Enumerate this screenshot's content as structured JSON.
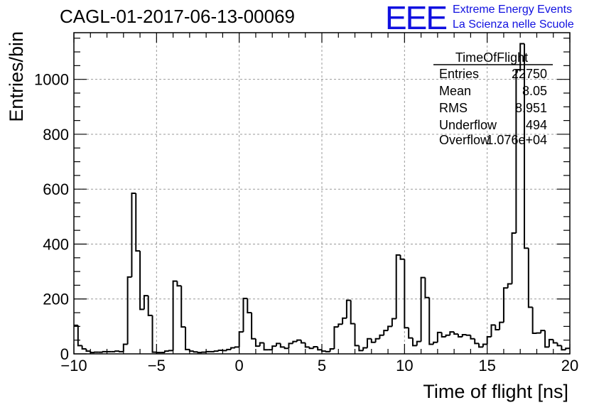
{
  "title": "CAGL-01-2017-06-13-00069",
  "logo": {
    "mark": "EEE",
    "line1": "Extreme Energy Events",
    "line2": "La Scienza nelle Scuole"
  },
  "stats_box": {
    "name": "TimeOfFlight",
    "rows": [
      {
        "label": "Entries",
        "value": "22750"
      },
      {
        "label": "Mean",
        "value": "8.05"
      },
      {
        "label": "RMS",
        "value": "8.951"
      },
      {
        "label": "Underflow",
        "value": "494"
      },
      {
        "label": "Overflow",
        "value": "1.076e+04"
      }
    ]
  },
  "chart_data": {
    "type": "histogram",
    "xlabel": "Time of flight [ns]",
    "ylabel": "Entries/bin",
    "xlim": [
      -10,
      20
    ],
    "ylim": [
      0,
      1170
    ],
    "xticks": [
      -10,
      -5,
      0,
      5,
      10,
      15,
      20
    ],
    "xtick_labels": [
      "−10",
      "−5",
      "0",
      "5",
      "10",
      "15",
      "20"
    ],
    "yticks": [
      0,
      200,
      400,
      600,
      800,
      1000
    ],
    "grid": true,
    "line_color": "#000000",
    "bin_width": 0.25,
    "x_start": -10,
    "values": [
      104,
      30,
      18,
      10,
      5,
      6,
      6,
      8,
      8,
      8,
      10,
      8,
      35,
      280,
      585,
      375,
      162,
      212,
      140,
      6,
      5,
      5,
      10,
      12,
      265,
      248,
      98,
      16,
      10,
      7,
      5,
      6,
      8,
      8,
      10,
      13,
      12,
      16,
      22,
      25,
      80,
      202,
      150,
      55,
      28,
      40,
      15,
      15,
      28,
      38,
      25,
      20,
      38,
      45,
      50,
      40,
      25,
      20,
      26,
      15,
      10,
      8,
      18,
      98,
      108,
      130,
      195,
      110,
      30,
      12,
      22,
      55,
      42,
      55,
      68,
      85,
      100,
      128,
      360,
      345,
      95,
      58,
      30,
      45,
      278,
      205,
      35,
      42,
      78,
      62,
      68,
      80,
      72,
      62,
      70,
      68,
      55,
      38,
      25,
      35,
      62,
      105,
      88,
      115,
      240,
      255,
      440,
      1035,
      1130,
      385,
      170,
      75,
      76,
      85,
      25,
      52,
      40,
      30,
      15,
      20
    ]
  }
}
